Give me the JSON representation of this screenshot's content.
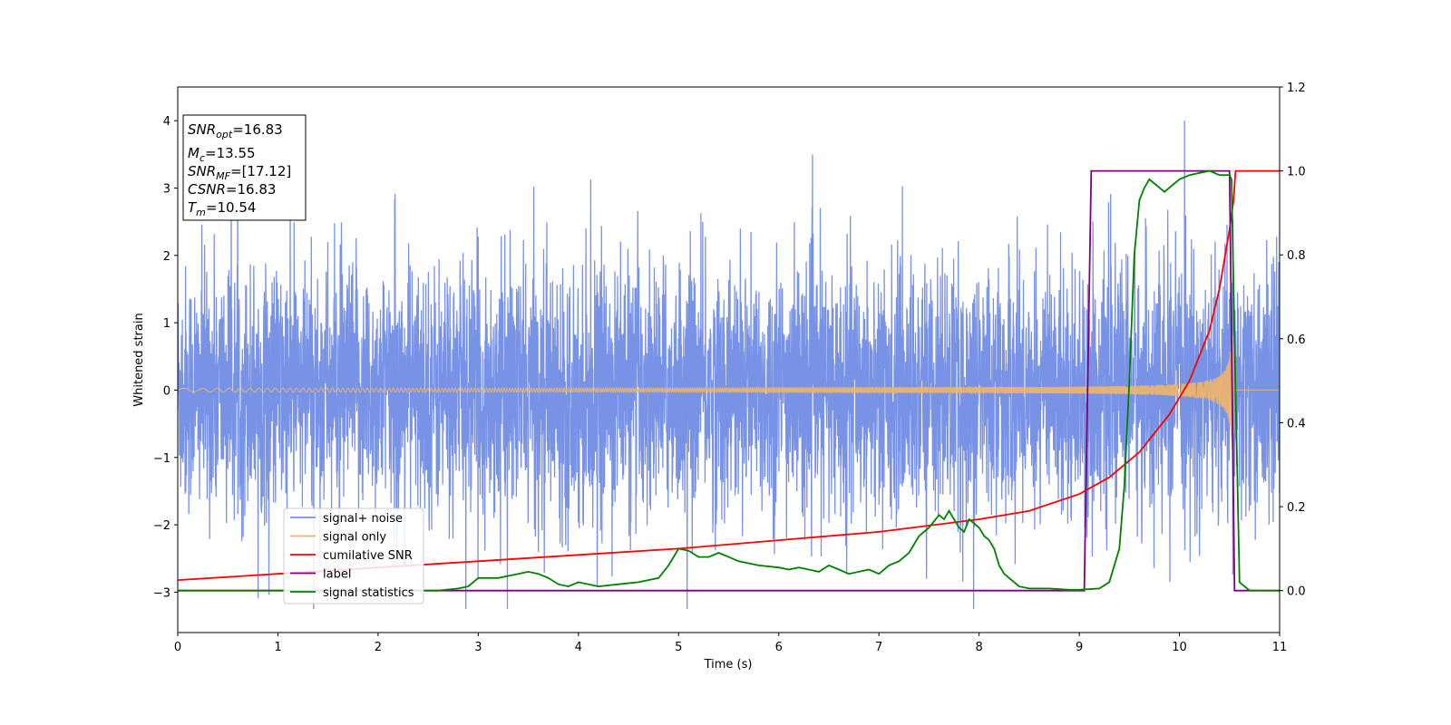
{
  "chart_data": {
    "type": "line",
    "xlabel": "Time (s)",
    "ylabel": "Whitened strain",
    "xlim": [
      0,
      11
    ],
    "ylim_left": [
      -3.6,
      4.5
    ],
    "ylim_right": [
      -0.1,
      1.2
    ],
    "x_ticks": [
      "0",
      "1",
      "2",
      "3",
      "4",
      "5",
      "6",
      "7",
      "8",
      "9",
      "10",
      "11"
    ],
    "y_ticks_left": [
      "−3",
      "−2",
      "−1",
      "0",
      "1",
      "2",
      "3",
      "4"
    ],
    "y_ticks_right": [
      "0.0",
      "0.2",
      "0.4",
      "0.6",
      "0.8",
      "1.0",
      "1.2"
    ],
    "legend_position": "lower-left",
    "annotations": [
      {
        "name": "SNR",
        "sub": "opt",
        "value": "=16.83"
      },
      {
        "name": "M",
        "sub": "c",
        "value": "=13.55"
      },
      {
        "name": "SNR",
        "sub": "MF",
        "value": "=[17.12]"
      },
      {
        "name": "CSNR",
        "sub": "",
        "value": "=16.83"
      },
      {
        "name": "T",
        "sub": "m",
        "value": "=10.54"
      }
    ],
    "series": [
      {
        "name": "signal+ noise",
        "color": "#7893e6",
        "axis": "left",
        "description_values": {
          "noise_std": 0.9,
          "peak_max": 4.15,
          "peak_min": -3.25
        }
      },
      {
        "name": "signal only",
        "color": "#f0b56a",
        "axis": "left",
        "chirp": {
          "t_merge": 10.54,
          "final_amplitude": 2.4,
          "start_amplitude": 0.02
        }
      },
      {
        "name": "cumilative SNR",
        "color": "#ff0000",
        "axis": "right",
        "x": [
          0,
          1,
          2,
          3,
          4,
          5,
          6,
          7,
          8,
          8.5,
          9,
          9.3,
          9.6,
          9.9,
          10.1,
          10.3,
          10.4,
          10.5,
          10.54,
          10.56,
          11
        ],
        "y": [
          0.025,
          0.04,
          0.055,
          0.07,
          0.085,
          0.1,
          0.12,
          0.14,
          0.17,
          0.19,
          0.23,
          0.27,
          0.33,
          0.42,
          0.5,
          0.62,
          0.72,
          0.86,
          0.93,
          1.0,
          1.0
        ]
      },
      {
        "name": "label",
        "color": "#800080",
        "axis": "right",
        "x": [
          0,
          9.05,
          9.12,
          10.5,
          10.55,
          11
        ],
        "y": [
          0,
          0,
          1,
          1,
          0,
          0
        ]
      },
      {
        "name": "signal statistics",
        "color": "#008000",
        "axis": "right",
        "x": [
          0,
          2.6,
          2.8,
          2.9,
          3.0,
          3.2,
          3.4,
          3.5,
          3.6,
          3.7,
          3.8,
          3.9,
          4.0,
          4.1,
          4.2,
          4.4,
          4.6,
          4.8,
          4.9,
          5.0,
          5.1,
          5.2,
          5.3,
          5.4,
          5.5,
          5.6,
          5.8,
          6.0,
          6.1,
          6.2,
          6.3,
          6.4,
          6.5,
          6.6,
          6.7,
          6.8,
          6.9,
          7.0,
          7.1,
          7.2,
          7.3,
          7.4,
          7.5,
          7.6,
          7.65,
          7.7,
          7.75,
          7.8,
          7.85,
          7.9,
          7.95,
          8.0,
          8.05,
          8.1,
          8.15,
          8.2,
          8.25,
          8.3,
          8.4,
          8.5,
          8.7,
          8.9,
          9.0,
          9.2,
          9.3,
          9.4,
          9.45,
          9.5,
          9.55,
          9.6,
          9.65,
          9.7,
          9.75,
          9.8,
          9.85,
          9.9,
          10.0,
          10.1,
          10.2,
          10.3,
          10.4,
          10.5,
          10.52,
          10.55,
          10.6,
          10.7,
          11
        ],
        "y": [
          0,
          0,
          0.005,
          0.01,
          0.03,
          0.03,
          0.04,
          0.045,
          0.04,
          0.03,
          0.015,
          0.01,
          0.02,
          0.015,
          0.01,
          0.015,
          0.02,
          0.03,
          0.06,
          0.1,
          0.095,
          0.08,
          0.08,
          0.09,
          0.08,
          0.07,
          0.06,
          0.055,
          0.05,
          0.055,
          0.05,
          0.045,
          0.06,
          0.05,
          0.04,
          0.045,
          0.05,
          0.04,
          0.06,
          0.07,
          0.09,
          0.13,
          0.15,
          0.18,
          0.17,
          0.19,
          0.17,
          0.15,
          0.14,
          0.17,
          0.16,
          0.15,
          0.13,
          0.12,
          0.1,
          0.06,
          0.04,
          0.03,
          0.01,
          0.005,
          0.005,
          0.002,
          0.002,
          0.005,
          0.02,
          0.1,
          0.25,
          0.5,
          0.8,
          0.93,
          0.96,
          0.98,
          0.97,
          0.96,
          0.95,
          0.96,
          0.98,
          0.99,
          0.995,
          1.0,
          0.99,
          0.99,
          0.98,
          0.6,
          0.02,
          0.0,
          0.0
        ]
      }
    ]
  }
}
